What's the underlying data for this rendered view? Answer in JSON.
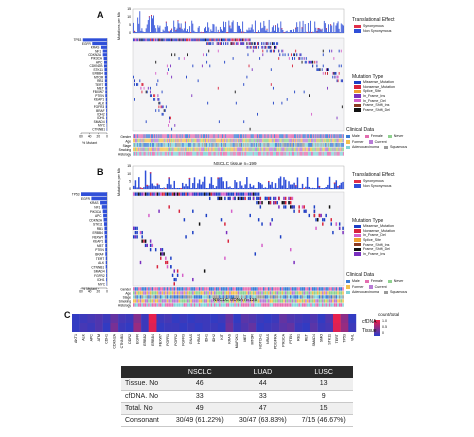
{
  "figure": {
    "panelA": {
      "letter": "A",
      "tmb_axis_label": "Mutations per Mb",
      "tmb_ticks": [
        "15",
        "10",
        "5",
        "0"
      ],
      "genes": [
        "TP53",
        "EGFR",
        "KRAS",
        "NF1",
        "CDKN2A",
        "PIK3CA",
        "APC",
        "CDKN2B",
        "STK11",
        "ERBB4",
        "MTOR",
        "RB1",
        "TERT",
        "MET",
        "FBXW7",
        "PTEN",
        "KEAP1",
        "ALK",
        "FGFR3",
        "BRAF",
        "IDH2",
        "IDH1",
        "SMAD4",
        "MYC",
        "CTNNB1"
      ],
      "bar_values": [
        56,
        34,
        14,
        10,
        10,
        8,
        7,
        7,
        6,
        6,
        5,
        5,
        5,
        4,
        4,
        4,
        3,
        3,
        3,
        2,
        2,
        2,
        2,
        1,
        1
      ],
      "xticks": [
        "0",
        "20",
        "40",
        "60"
      ],
      "xlabel": "% Mutant",
      "caption": "NSCLC tissue n=199",
      "translational_title": "Translational Effect",
      "translational_items": [
        {
          "label": "Synonymous",
          "color": "#e0304a"
        },
        {
          "label": "Non Synonymous",
          "color": "#2f4fd8"
        }
      ],
      "mutation_title": "Mutation Type",
      "mutation_items": [
        {
          "label": "Missense_Mutation",
          "color": "#1c3fc4"
        },
        {
          "label": "Nonsense_Mutation",
          "color": "#d8243d"
        },
        {
          "label": "Splice_Site",
          "color": "#f0a030"
        },
        {
          "label": "In_Frame_Ins",
          "color": "#7a2fbf"
        },
        {
          "label": "In_Frame_Del",
          "color": "#d660c9"
        },
        {
          "label": "Frame_Shift_Ins",
          "color": "#8b3a22"
        },
        {
          "label": "Frame_Shift_Del",
          "color": "#111111"
        }
      ],
      "clinical_title": "Clinical Data",
      "clinical_rows": [
        "Gender",
        "Age",
        "Stage",
        "Smoking",
        "Histology"
      ],
      "clinical_legend": [
        "Male",
        "Female",
        "Never",
        "Former",
        "Current",
        "Adenocarcinoma",
        "Squamous"
      ]
    },
    "panelB": {
      "letter": "B",
      "tmb_axis_label": "Mutations per Mb",
      "tmb_ticks": [
        "15",
        "10",
        "5",
        "0"
      ],
      "genes": [
        "TP53",
        "EGFR",
        "KRAS",
        "NF1",
        "PIK3CA",
        "APC",
        "CDKN2A",
        "STK11",
        "RB1",
        "ERBB4",
        "FBXW7",
        "KEAP1",
        "MET",
        "PTEN",
        "BRAF",
        "TERT",
        "ALK",
        "CTNNB1",
        "SMAD4",
        "FGFR2",
        "IDH1",
        "MYC"
      ],
      "bar_values": [
        60,
        36,
        16,
        12,
        10,
        9,
        8,
        7,
        6,
        6,
        5,
        5,
        4,
        4,
        4,
        3,
        3,
        3,
        2,
        2,
        2,
        1
      ],
      "xticks": [
        "0",
        "20",
        "40",
        "60"
      ],
      "xlabel": "% Mutant",
      "caption": "NSCLC cfDNA n=125",
      "translational_title": "Translational Effect",
      "translational_items": [
        {
          "label": "Synonymous",
          "color": "#e0304a"
        },
        {
          "label": "Non Synonymous",
          "color": "#2f4fd8"
        }
      ],
      "mutation_title": "Mutation Type",
      "mutation_items": [
        {
          "label": "Missense_Mutation",
          "color": "#1c3fc4"
        },
        {
          "label": "Nonsense_Mutation",
          "color": "#d8243d"
        },
        {
          "label": "In_Frame_Del",
          "color": "#d660c9"
        },
        {
          "label": "Splice_Site",
          "color": "#f0a030"
        },
        {
          "label": "Frame_Shift_Ins",
          "color": "#8b3a22"
        },
        {
          "label": "Frame_Shift_Del",
          "color": "#111111"
        },
        {
          "label": "In_Frame_Ins",
          "color": "#7a2fbf"
        }
      ],
      "clinical_title": "Clinical Data",
      "clinical_rows": [
        "Gender",
        "Age",
        "Stage",
        "Smoking",
        "Histology"
      ],
      "clinical_legend": [
        "Male",
        "Female",
        "Never",
        "Former",
        "Current",
        "Adenocarcinoma",
        "Squamous"
      ]
    },
    "panelC": {
      "letter": "C",
      "genes": [
        "AKT1",
        "ALK",
        "APC",
        "ATM",
        "CDH1",
        "CDKN2A",
        "CTNNB1",
        "DDR2",
        "EGFR",
        "ERBB2",
        "ERBB4",
        "FBXW7",
        "FGFR1",
        "FGFR2",
        "FGFR3",
        "GNAS",
        "HRAS",
        "IDH1",
        "IDH2",
        "KIT",
        "KRAS",
        "MAP2K1",
        "MET",
        "MTOR",
        "NOTCH1",
        "NRAS",
        "PDGFRA",
        "PIK3CA",
        "PTEN",
        "RB1",
        "RET",
        "SMAD4",
        "SMO",
        "STK11",
        "TERT",
        "TP53",
        "VHL"
      ],
      "rows": [
        "cfDNA",
        "Tissue"
      ],
      "legend_title": "count/total",
      "legend_ticks": [
        "1.0",
        "0.5",
        "0"
      ],
      "cfdna_values": [
        0.05,
        0.1,
        0.15,
        0.2,
        0.1,
        0.3,
        0.15,
        0.1,
        0.45,
        0.1,
        0.95,
        0.1,
        0.15,
        0.05,
        0.1,
        0.05,
        0.1,
        0.1,
        0.05,
        0.1,
        0.3,
        0.05,
        0.25,
        0.2,
        0.1,
        0.05,
        0.1,
        0.3,
        0.2,
        0.15,
        0.1,
        0.2,
        0.05,
        0.2,
        0.95,
        0.5,
        0.05
      ],
      "tissue_values": [
        0.05,
        0.15,
        0.1,
        0.2,
        0.05,
        0.4,
        0.1,
        0.05,
        0.55,
        0.1,
        0.9,
        0.05,
        0.1,
        0.1,
        0.05,
        0.1,
        0.05,
        0.1,
        0.1,
        0.05,
        0.35,
        0.1,
        0.2,
        0.3,
        0.05,
        0.1,
        0.15,
        0.25,
        0.3,
        0.1,
        0.05,
        0.25,
        0.1,
        0.15,
        0.9,
        0.55,
        0.1
      ]
    },
    "table": {
      "headers": [
        "",
        "NSCLC",
        "LUAD",
        "LUSC"
      ],
      "rows": [
        [
          "Tissue. No",
          "46",
          "44",
          "13"
        ],
        [
          "cfDNA. No",
          "33",
          "33",
          "9"
        ],
        [
          "Total. No",
          "49",
          "47",
          "15"
        ],
        [
          "Consonant",
          "30/49 (61.22%)",
          "30/47 (63.83%)",
          "7/15 (46.67%)"
        ]
      ]
    }
  }
}
